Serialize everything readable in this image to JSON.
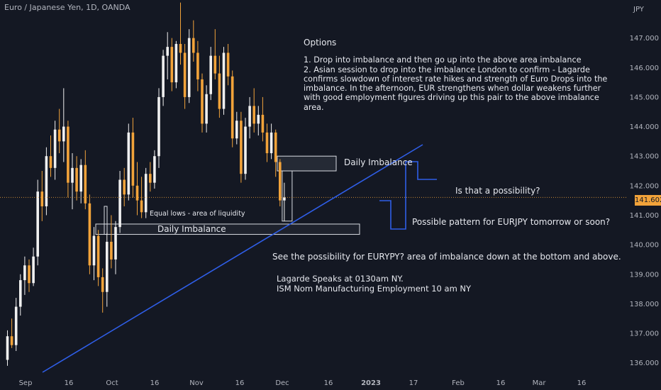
{
  "header": {
    "title": "Euro / Japanese Yen, 1D, OANDA"
  },
  "colors": {
    "background": "#141823",
    "bull": "#f0f0f0",
    "bear": "#f2a33a",
    "trendline": "#2f5ee8",
    "price_tag": "#f2a33a",
    "axis_text": "#b2b5be"
  },
  "chart_data": {
    "type": "candlestick",
    "currency_label": "JPY",
    "ylim": [
      135.8,
      148.0
    ],
    "y_ticks": [
      "136.000",
      "137.000",
      "138.000",
      "139.000",
      "140.000",
      "141.000",
      "142.000",
      "143.000",
      "144.000",
      "145.000",
      "146.000",
      "147.000"
    ],
    "x_ticks": [
      "Sep",
      "16",
      "Oct",
      "16",
      "Nov",
      "16",
      "Dec",
      "16",
      "2023",
      "17",
      "Feb",
      "16",
      "Mar",
      "16"
    ],
    "current_price": "141.602",
    "candles": [
      {
        "o": 136.1,
        "h": 137.1,
        "l": 135.9,
        "c": 136.9
      },
      {
        "o": 136.9,
        "h": 137.5,
        "l": 136.5,
        "c": 136.6
      },
      {
        "o": 136.6,
        "h": 138.2,
        "l": 136.4,
        "c": 137.9
      },
      {
        "o": 137.9,
        "h": 139.0,
        "l": 137.6,
        "c": 138.8
      },
      {
        "o": 138.8,
        "h": 139.6,
        "l": 138.3,
        "c": 139.3
      },
      {
        "o": 139.3,
        "h": 139.5,
        "l": 138.4,
        "c": 138.7
      },
      {
        "o": 138.7,
        "h": 139.9,
        "l": 138.6,
        "c": 139.6
      },
      {
        "o": 139.6,
        "h": 142.2,
        "l": 139.3,
        "c": 141.8
      },
      {
        "o": 141.8,
        "h": 142.5,
        "l": 140.8,
        "c": 141.3
      },
      {
        "o": 141.3,
        "h": 143.3,
        "l": 141.0,
        "c": 143.0
      },
      {
        "o": 143.0,
        "h": 143.7,
        "l": 142.3,
        "c": 142.6
      },
      {
        "o": 142.6,
        "h": 144.2,
        "l": 142.2,
        "c": 143.9
      },
      {
        "o": 143.9,
        "h": 144.6,
        "l": 143.1,
        "c": 143.5
      },
      {
        "o": 143.5,
        "h": 145.3,
        "l": 142.8,
        "c": 144.0
      },
      {
        "o": 144.0,
        "h": 144.2,
        "l": 141.6,
        "c": 142.1
      },
      {
        "o": 142.1,
        "h": 143.1,
        "l": 141.2,
        "c": 142.6
      },
      {
        "o": 142.6,
        "h": 143.0,
        "l": 141.5,
        "c": 141.8
      },
      {
        "o": 141.8,
        "h": 142.9,
        "l": 141.4,
        "c": 142.7
      },
      {
        "o": 142.7,
        "h": 143.2,
        "l": 141.2,
        "c": 141.4
      },
      {
        "o": 141.4,
        "h": 141.7,
        "l": 139.0,
        "c": 139.3
      },
      {
        "o": 139.3,
        "h": 140.6,
        "l": 138.8,
        "c": 140.3
      },
      {
        "o": 140.3,
        "h": 140.5,
        "l": 138.6,
        "c": 138.9
      },
      {
        "o": 138.9,
        "h": 139.2,
        "l": 137.7,
        "c": 138.4
      },
      {
        "o": 138.4,
        "h": 140.4,
        "l": 137.9,
        "c": 140.1
      },
      {
        "o": 140.1,
        "h": 141.0,
        "l": 139.2,
        "c": 139.5
      },
      {
        "o": 139.5,
        "h": 140.8,
        "l": 139.0,
        "c": 140.6
      },
      {
        "o": 140.6,
        "h": 142.5,
        "l": 140.4,
        "c": 142.2
      },
      {
        "o": 142.2,
        "h": 142.6,
        "l": 141.3,
        "c": 141.7
      },
      {
        "o": 141.7,
        "h": 144.1,
        "l": 141.5,
        "c": 143.8
      },
      {
        "o": 143.8,
        "h": 144.3,
        "l": 141.6,
        "c": 142.0
      },
      {
        "o": 142.0,
        "h": 142.8,
        "l": 141.0,
        "c": 141.5
      },
      {
        "o": 141.5,
        "h": 142.3,
        "l": 140.9,
        "c": 141.1
      },
      {
        "o": 141.1,
        "h": 142.6,
        "l": 140.9,
        "c": 142.4
      },
      {
        "o": 142.4,
        "h": 142.8,
        "l": 141.8,
        "c": 142.1
      },
      {
        "o": 142.1,
        "h": 143.2,
        "l": 141.9,
        "c": 143.0
      },
      {
        "o": 143.0,
        "h": 145.3,
        "l": 142.6,
        "c": 145.0
      },
      {
        "o": 145.0,
        "h": 146.6,
        "l": 144.7,
        "c": 146.4
      },
      {
        "o": 146.4,
        "h": 147.2,
        "l": 145.6,
        "c": 146.7
      },
      {
        "o": 146.7,
        "h": 147.0,
        "l": 145.2,
        "c": 145.5
      },
      {
        "o": 145.5,
        "h": 146.9,
        "l": 145.3,
        "c": 146.8
      },
      {
        "o": 146.8,
        "h": 148.2,
        "l": 146.1,
        "c": 146.5
      },
      {
        "o": 146.5,
        "h": 146.8,
        "l": 144.6,
        "c": 145.0
      },
      {
        "o": 145.0,
        "h": 147.3,
        "l": 144.8,
        "c": 147.0
      },
      {
        "o": 147.0,
        "h": 147.6,
        "l": 146.2,
        "c": 146.5
      },
      {
        "o": 146.5,
        "h": 146.9,
        "l": 145.2,
        "c": 145.6
      },
      {
        "o": 145.6,
        "h": 145.8,
        "l": 143.8,
        "c": 144.1
      },
      {
        "o": 144.1,
        "h": 145.4,
        "l": 143.8,
        "c": 145.1
      },
      {
        "o": 145.1,
        "h": 146.7,
        "l": 144.9,
        "c": 146.4
      },
      {
        "o": 146.4,
        "h": 147.3,
        "l": 145.6,
        "c": 145.8
      },
      {
        "o": 145.8,
        "h": 146.4,
        "l": 144.3,
        "c": 144.6
      },
      {
        "o": 144.6,
        "h": 146.7,
        "l": 144.4,
        "c": 146.5
      },
      {
        "o": 146.5,
        "h": 146.8,
        "l": 145.4,
        "c": 145.7
      },
      {
        "o": 145.7,
        "h": 145.9,
        "l": 143.3,
        "c": 143.6
      },
      {
        "o": 143.6,
        "h": 144.5,
        "l": 143.4,
        "c": 144.2
      },
      {
        "o": 144.2,
        "h": 144.5,
        "l": 142.1,
        "c": 142.4
      },
      {
        "o": 142.4,
        "h": 144.3,
        "l": 142.2,
        "c": 144.0
      },
      {
        "o": 144.0,
        "h": 145.0,
        "l": 143.6,
        "c": 144.7
      },
      {
        "o": 144.7,
        "h": 145.3,
        "l": 143.8,
        "c": 144.1
      },
      {
        "o": 144.1,
        "h": 144.7,
        "l": 143.7,
        "c": 144.4
      },
      {
        "o": 144.4,
        "h": 145.0,
        "l": 143.5,
        "c": 143.8
      },
      {
        "o": 143.8,
        "h": 144.1,
        "l": 142.8,
        "c": 143.1
      },
      {
        "o": 143.1,
        "h": 144.1,
        "l": 142.9,
        "c": 143.8
      },
      {
        "o": 143.8,
        "h": 143.9,
        "l": 142.3,
        "c": 142.8
      },
      {
        "o": 142.8,
        "h": 142.9,
        "l": 141.3,
        "c": 141.5
      },
      {
        "o": 141.5,
        "h": 142.1,
        "l": 140.8,
        "c": 141.6
      }
    ],
    "zones": [
      {
        "name": "Daily Imbalance",
        "y_top": 143.0,
        "y_bottom": 142.5
      },
      {
        "name": "Daily Imbalance",
        "y_top": 140.7,
        "y_bottom": 140.35
      },
      {
        "name": "price range box",
        "y_top": 142.5,
        "y_bottom": 140.8
      }
    ]
  },
  "annotations": {
    "options_heading": "Options",
    "options_1": "1. Drop into imbalance and then go up into the above area imbalance",
    "options_2": "2. Asian session to drop into the imbalance London to confirm - Lagarde confirms slowdown of interest rate hikes and strength of Euro Drops into the imbalance. In the afternoon, EUR strengthens when dollar weakens further with good employment figures driving up this pair to the above imbalance area.",
    "daily_imbalance_top": "Daily Imbalance",
    "is_possibility": "Is that a possibility?",
    "possible_pattern": "Possible pattern for EURJPY tomorrow or soon?",
    "equal_lows": "Equal lows - area of liquidity",
    "daily_imbalance_bottom": "Daily Imbalance",
    "see_possibility": "See the possibility for EURYPY? area of imbalance down at the bottom and above.",
    "news_1": "Lagarde Speaks at 0130am NY.",
    "news_2": "ISM Nom Manufacturing Employment 10 am NY"
  }
}
